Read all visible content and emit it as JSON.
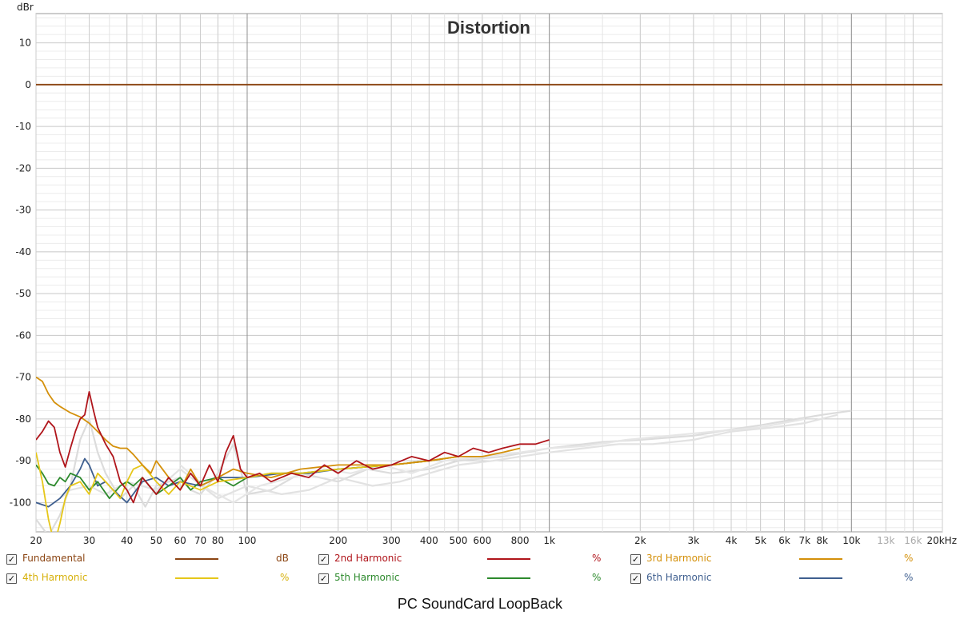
{
  "caption": "PC SoundCard LoopBack",
  "chart_data": {
    "type": "line",
    "title": "Distortion",
    "ylabel": "dBr",
    "xlabel": "",
    "xscale": "log",
    "xlim": [
      20,
      20000
    ],
    "ylim": [
      -107,
      17
    ],
    "grid": true,
    "y_ticks": [
      "10",
      "0",
      "-10",
      "-20",
      "-30",
      "-40",
      "-50",
      "-60",
      "-70",
      "-80",
      "-90",
      "-100"
    ],
    "y_tick_values": [
      10,
      0,
      -10,
      -20,
      -30,
      -40,
      -50,
      -60,
      -70,
      -80,
      -90,
      -100
    ],
    "x_ticks": [
      {
        "v": 20,
        "label": "20",
        "dim": false
      },
      {
        "v": 30,
        "label": "30",
        "dim": false
      },
      {
        "v": 40,
        "label": "40",
        "dim": false
      },
      {
        "v": 50,
        "label": "50",
        "dim": false
      },
      {
        "v": 60,
        "label": "60",
        "dim": false
      },
      {
        "v": 70,
        "label": "70",
        "dim": false
      },
      {
        "v": 80,
        "label": "80",
        "dim": false
      },
      {
        "v": 100,
        "label": "100",
        "dim": false
      },
      {
        "v": 200,
        "label": "200",
        "dim": false
      },
      {
        "v": 300,
        "label": "300",
        "dim": false
      },
      {
        "v": 400,
        "label": "400",
        "dim": false
      },
      {
        "v": 500,
        "label": "500",
        "dim": false
      },
      {
        "v": 600,
        "label": "600",
        "dim": false
      },
      {
        "v": 800,
        "label": "800",
        "dim": false
      },
      {
        "v": 1000,
        "label": "1k",
        "dim": false
      },
      {
        "v": 2000,
        "label": "2k",
        "dim": false
      },
      {
        "v": 3000,
        "label": "3k",
        "dim": false
      },
      {
        "v": 4000,
        "label": "4k",
        "dim": false
      },
      {
        "v": 5000,
        "label": "5k",
        "dim": false
      },
      {
        "v": 6000,
        "label": "6k",
        "dim": false
      },
      {
        "v": 7000,
        "label": "7k",
        "dim": false
      },
      {
        "v": 8000,
        "label": "8k",
        "dim": false
      },
      {
        "v": 10000,
        "label": "10k",
        "dim": false
      },
      {
        "v": 13000,
        "label": "13k",
        "dim": true
      },
      {
        "v": 16000,
        "label": "16k",
        "dim": true
      },
      {
        "v": 20000,
        "label": "20kHz",
        "dim": false
      }
    ],
    "series": [
      {
        "name": "Fundamental",
        "color": "#8b4513",
        "unit": "dB",
        "x": [
          20,
          20000
        ],
        "y": [
          0,
          0
        ]
      },
      {
        "name": "2nd Harmonic",
        "color": "#b0151b",
        "unit": "%",
        "x": [
          20,
          21,
          22,
          23,
          24,
          25,
          26,
          27,
          28,
          29,
          30,
          31,
          32,
          34,
          36,
          38,
          40,
          42,
          45,
          50,
          55,
          60,
          65,
          70,
          75,
          80,
          85,
          90,
          95,
          100,
          110,
          120,
          140,
          160,
          180,
          200,
          230,
          260,
          300,
          350,
          400,
          450,
          500,
          560,
          630,
          700,
          800,
          900,
          1000
        ],
        "y": [
          -85,
          -83,
          -80.5,
          -82,
          -88,
          -91.5,
          -87,
          -83,
          -80,
          -79,
          -73.5,
          -78,
          -82,
          -86,
          -89,
          -95,
          -97,
          -100,
          -94,
          -98,
          -94,
          -97,
          -93,
          -96,
          -91,
          -95,
          -88,
          -84,
          -92,
          -94,
          -93,
          -95,
          -93,
          -94,
          -91,
          -93,
          -90,
          -92,
          -91,
          -89,
          -90,
          -88,
          -89,
          -87,
          -88,
          -87,
          -86,
          -86,
          -85
        ]
      },
      {
        "name": "3rd Harmonic",
        "color": "#d4900a",
        "unit": "%",
        "x": [
          20,
          21,
          22,
          23,
          24,
          26,
          28,
          30,
          32,
          34,
          36,
          38,
          40,
          42,
          45,
          48,
          50,
          55,
          60,
          65,
          70,
          80,
          90,
          100,
          120,
          150,
          200,
          250,
          300,
          400,
          500,
          600,
          700,
          800
        ],
        "y": [
          -70,
          -71,
          -74,
          -76,
          -77,
          -78.5,
          -79.5,
          -81,
          -83,
          -85,
          -86.5,
          -87,
          -87,
          -88.5,
          -91,
          -93,
          -90,
          -94,
          -97,
          -92,
          -96,
          -94,
          -92,
          -93,
          -94,
          -92,
          -91,
          -91,
          -91,
          -90,
          -89,
          -89,
          -88,
          -87
        ]
      },
      {
        "name": "4th Harmonic",
        "color": "#e6c71a",
        "unit": "%",
        "x": [
          20,
          21,
          22,
          23,
          24,
          25,
          26,
          28,
          30,
          32,
          35,
          38,
          40,
          42,
          45,
          50,
          55,
          60,
          70,
          80,
          100,
          120,
          150,
          200,
          300,
          400,
          500
        ],
        "y": [
          -88,
          -95,
          -104,
          -110,
          -105,
          -99,
          -96,
          -95,
          -98,
          -93,
          -96,
          -99,
          -95,
          -92,
          -91,
          -95,
          -98,
          -95,
          -97,
          -95,
          -94,
          -93,
          -93,
          -92,
          -91,
          -90,
          -89
        ]
      },
      {
        "name": "5th Harmonic",
        "color": "#2d8a2d",
        "unit": "%",
        "x": [
          20,
          21,
          22,
          23,
          24,
          25,
          26,
          28,
          30,
          32,
          35,
          38,
          40,
          42,
          45,
          50,
          55,
          60,
          65,
          70,
          80,
          90,
          100,
          120,
          150,
          200,
          300,
          400,
          500
        ],
        "y": [
          -91,
          -93,
          -95.5,
          -96,
          -94,
          -95,
          -93,
          -94,
          -97,
          -95,
          -99,
          -96,
          -95,
          -96,
          -94,
          -98,
          -96,
          -94,
          -97,
          -95,
          -94,
          -96,
          -94,
          -93,
          -93,
          -92,
          -91,
          -90,
          -89
        ]
      },
      {
        "name": "6th Harmonic",
        "color": "#3f5f8f",
        "unit": "%",
        "x": [
          20,
          22,
          24,
          26,
          28,
          29,
          30,
          32,
          34,
          36,
          40,
          45,
          50,
          55,
          60,
          70,
          80,
          100,
          130,
          160,
          200,
          300,
          400
        ],
        "y": [
          -100,
          -101,
          -99,
          -96,
          -92,
          -89.5,
          -91,
          -96,
          -95,
          -97,
          -100,
          -95,
          -94,
          -96,
          -95,
          -96,
          -94,
          -94,
          -93,
          -93,
          -92,
          -91,
          -90
        ]
      },
      {
        "name": "",
        "color": "#dcdcdc",
        "unit": "",
        "x": [
          20,
          22,
          24,
          26,
          28,
          30,
          32,
          34,
          38,
          42,
          46,
          50,
          55,
          60,
          65,
          70,
          80,
          90,
          100,
          120,
          150,
          200,
          250,
          300,
          400,
          500,
          700,
          1000,
          1500,
          2000,
          3000,
          4000,
          5000,
          6000,
          8000,
          10000
        ],
        "y": [
          -104,
          -108,
          -103,
          -96,
          -85,
          -80,
          -88,
          -93,
          -99,
          -96,
          -101,
          -96,
          -95,
          -94,
          -97,
          -98,
          -93,
          -86,
          -98,
          -97,
          -93,
          -95,
          -92,
          -93,
          -92,
          -90,
          -89,
          -87,
          -85.5,
          -85,
          -84,
          -82.5,
          -81.5,
          -80.5,
          -79,
          -78
        ]
      },
      {
        "name": "",
        "color": "#e2e2e2",
        "unit": "",
        "x": [
          24,
          26,
          30,
          34,
          40,
          50,
          60,
          80,
          100,
          130,
          160,
          200,
          260,
          320,
          400,
          500,
          650,
          800,
          1000,
          1300,
          1700,
          2200,
          3000,
          4000,
          5500,
          7000,
          9000
        ],
        "y": [
          -99,
          -97,
          -96,
          -98,
          -95,
          -97,
          -92,
          -99,
          -96,
          -98,
          -97,
          -94,
          -96,
          -95,
          -93,
          -91,
          -90,
          -89,
          -88,
          -87,
          -86,
          -86,
          -85,
          -83,
          -82,
          -81,
          -79
        ]
      },
      {
        "name": "",
        "color": "#e6e6e6",
        "unit": "",
        "x": [
          60,
          75,
          90,
          110,
          140,
          180,
          220,
          280,
          350,
          450,
          600,
          800,
          1000,
          1300,
          1800,
          2500,
          3500,
          5000,
          7000
        ],
        "y": [
          -91,
          -97,
          -100,
          -96,
          -94,
          -92,
          -93,
          -91,
          -93,
          -90,
          -89,
          -88,
          -87,
          -86.5,
          -85,
          -84,
          -83,
          -82,
          -80
        ]
      }
    ]
  },
  "legend": {
    "rows": [
      [
        {
          "check": "✓",
          "name": "Fundamental",
          "color": "#8b4513",
          "text_color": "#8b4513",
          "unit": "dB",
          "unit_color": "#8b4513"
        },
        {
          "check": "✓",
          "name": "2nd Harmonic",
          "color": "#b0151b",
          "text_color": "#b0151b",
          "unit": "%",
          "unit_color": "#b0151b"
        },
        {
          "check": "✓",
          "name": "3rd Harmonic",
          "color": "#d4900a",
          "text_color": "#d4900a",
          "unit": "%",
          "unit_color": "#d4900a"
        }
      ],
      [
        {
          "check": "✓",
          "name": "4th Harmonic",
          "color": "#e6c71a",
          "text_color": "#d6b00a",
          "unit": "%",
          "unit_color": "#d6b00a"
        },
        {
          "check": "✓",
          "name": "5th Harmonic",
          "color": "#2d8a2d",
          "text_color": "#2d8a2d",
          "unit": "%",
          "unit_color": "#2d8a2d"
        },
        {
          "check": "✓",
          "name": "6th Harmonic",
          "color": "#3f5f8f",
          "text_color": "#3f5f8f",
          "unit": "%",
          "unit_color": "#3f5f8f"
        }
      ]
    ]
  }
}
